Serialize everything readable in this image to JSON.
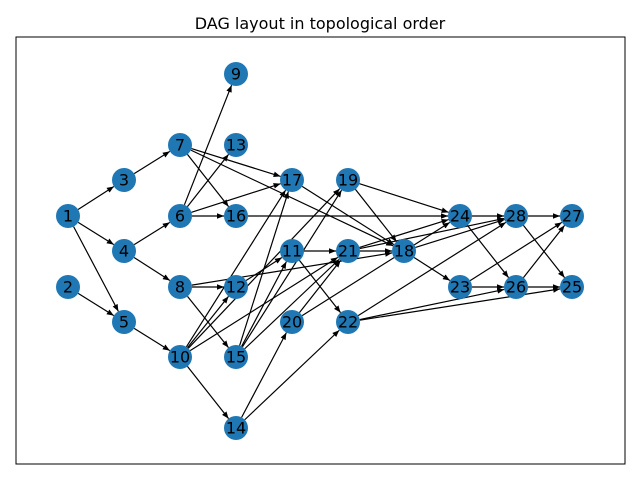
{
  "diagram": {
    "title": "DAG layout in topological order",
    "node_color": "#1f77b4",
    "nodes": [
      "1",
      "2",
      "3",
      "4",
      "5",
      "6",
      "7",
      "8",
      "9",
      "10",
      "11",
      "12",
      "13",
      "14",
      "15",
      "16",
      "17",
      "18",
      "19",
      "20",
      "21",
      "22",
      "23",
      "24",
      "25",
      "26",
      "27",
      "28"
    ],
    "edges": [
      [
        "1",
        "3"
      ],
      [
        "1",
        "4"
      ],
      [
        "1",
        "5"
      ],
      [
        "2",
        "5"
      ],
      [
        "3",
        "7"
      ],
      [
        "4",
        "6"
      ],
      [
        "4",
        "8"
      ],
      [
        "5",
        "10"
      ],
      [
        "6",
        "9"
      ],
      [
        "6",
        "13"
      ],
      [
        "6",
        "16"
      ],
      [
        "6",
        "17"
      ],
      [
        "7",
        "17"
      ],
      [
        "7",
        "16"
      ],
      [
        "7",
        "18"
      ],
      [
        "8",
        "12"
      ],
      [
        "8",
        "15"
      ],
      [
        "8",
        "18"
      ],
      [
        "10",
        "14"
      ],
      [
        "10",
        "12"
      ],
      [
        "10",
        "17"
      ],
      [
        "10",
        "19"
      ],
      [
        "10",
        "21"
      ],
      [
        "11",
        "21"
      ],
      [
        "11",
        "22"
      ],
      [
        "12",
        "11"
      ],
      [
        "14",
        "20"
      ],
      [
        "14",
        "22"
      ],
      [
        "15",
        "17"
      ],
      [
        "15",
        "11"
      ],
      [
        "15",
        "19"
      ],
      [
        "15",
        "21"
      ],
      [
        "16",
        "24"
      ],
      [
        "17",
        "18"
      ],
      [
        "19",
        "18"
      ],
      [
        "19",
        "24"
      ],
      [
        "20",
        "21"
      ],
      [
        "20",
        "24"
      ],
      [
        "21",
        "18"
      ],
      [
        "21",
        "24"
      ],
      [
        "21",
        "28"
      ],
      [
        "18",
        "23"
      ],
      [
        "18",
        "28"
      ],
      [
        "22",
        "26"
      ],
      [
        "22",
        "25"
      ],
      [
        "22",
        "28"
      ],
      [
        "23",
        "26"
      ],
      [
        "23",
        "27"
      ],
      [
        "24",
        "28"
      ],
      [
        "24",
        "26"
      ],
      [
        "26",
        "27"
      ],
      [
        "26",
        "25"
      ],
      [
        "28",
        "27"
      ],
      [
        "28",
        "25"
      ]
    ]
  }
}
